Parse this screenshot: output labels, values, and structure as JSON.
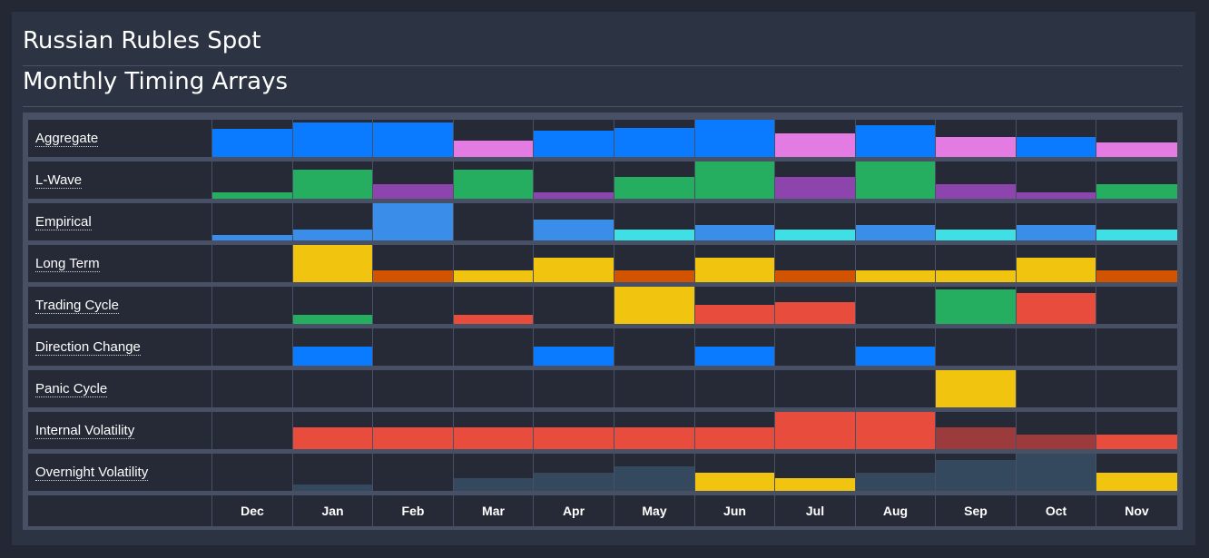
{
  "header": {
    "title": "Russian Rubles Spot",
    "subtitle": "Monthly Timing Arrays"
  },
  "colors": {
    "blue": "#0a7bff",
    "pink": "#e47be2",
    "green": "#26ae60",
    "purple": "#8e44ad",
    "mid_blue": "#3a8de8",
    "cyan": "#3ee0e6",
    "yellow": "#f1c40f",
    "orange": "#d35400",
    "red": "#e74c3c",
    "dark_red": "#9b3b3b",
    "slate": "#34495e",
    "cell_bg": "#252a36"
  },
  "chart_data": {
    "type": "heatmap",
    "title": "Monthly Timing Arrays",
    "categories": [
      "Dec",
      "Jan",
      "Feb",
      "Mar",
      "Apr",
      "May",
      "Jun",
      "Jul",
      "Aug",
      "Sep",
      "Oct",
      "Nov"
    ],
    "value_scale": "fraction of cell height (0-1)",
    "rows": [
      {
        "label": "Aggregate",
        "values": [
          0.75,
          0.93,
          0.93,
          0.45,
          0.71,
          0.77,
          1.0,
          0.64,
          0.85,
          0.54,
          0.54,
          0.4
        ],
        "colors": [
          "blue",
          "blue",
          "blue",
          "pink",
          "blue",
          "blue",
          "blue",
          "pink",
          "blue",
          "pink",
          "blue",
          "pink"
        ]
      },
      {
        "label": "L-Wave",
        "values": [
          0.18,
          0.78,
          0.39,
          0.78,
          0.18,
          0.58,
          1.0,
          0.58,
          1.0,
          0.39,
          0.18,
          0.39
        ],
        "colors": [
          "green",
          "green",
          "purple",
          "green",
          "purple",
          "green",
          "green",
          "purple",
          "green",
          "purple",
          "purple",
          "green"
        ]
      },
      {
        "label": "Empirical",
        "values": [
          0.15,
          0.29,
          1.0,
          0.0,
          0.56,
          0.29,
          0.41,
          0.29,
          0.41,
          0.29,
          0.41,
          0.29
        ],
        "colors": [
          "mid_blue",
          "mid_blue",
          "mid_blue",
          "mid_blue",
          "mid_blue",
          "cyan",
          "mid_blue",
          "cyan",
          "mid_blue",
          "cyan",
          "mid_blue",
          "cyan"
        ]
      },
      {
        "label": "Long Term",
        "values": [
          0.0,
          1.0,
          0.32,
          0.32,
          0.66,
          0.32,
          0.66,
          0.32,
          0.32,
          0.32,
          0.66,
          0.32
        ],
        "colors": [
          "yellow",
          "yellow",
          "orange",
          "yellow",
          "yellow",
          "orange",
          "yellow",
          "orange",
          "yellow",
          "yellow",
          "yellow",
          "orange"
        ]
      },
      {
        "label": "Trading Cycle",
        "values": [
          0.0,
          0.24,
          0.0,
          0.24,
          0.0,
          1.0,
          0.51,
          0.59,
          0.0,
          0.93,
          0.83,
          0.0
        ],
        "colors": [
          "green",
          "green",
          "green",
          "red",
          "green",
          "yellow",
          "red",
          "red",
          "green",
          "green",
          "red",
          "red"
        ]
      },
      {
        "label": "Direction Change",
        "values": [
          0.0,
          0.51,
          0.0,
          0.0,
          0.51,
          0.0,
          0.51,
          0.0,
          0.51,
          0.0,
          0.0,
          0.0
        ],
        "colors": [
          "blue",
          "blue",
          "blue",
          "blue",
          "blue",
          "blue",
          "blue",
          "blue",
          "blue",
          "blue",
          "blue",
          "blue"
        ]
      },
      {
        "label": "Panic Cycle",
        "values": [
          0.0,
          0.0,
          0.0,
          0.0,
          0.0,
          0.0,
          0.0,
          0.0,
          0.0,
          1.0,
          0.0,
          0.0
        ],
        "colors": [
          "yellow",
          "yellow",
          "yellow",
          "yellow",
          "yellow",
          "yellow",
          "yellow",
          "yellow",
          "yellow",
          "yellow",
          "yellow",
          "yellow"
        ]
      },
      {
        "label": "Internal Volatility",
        "values": [
          0.0,
          0.59,
          0.59,
          0.59,
          0.59,
          0.59,
          0.59,
          1.0,
          1.0,
          0.59,
          0.39,
          0.39
        ],
        "colors": [
          "red",
          "red",
          "red",
          "red",
          "red",
          "red",
          "red",
          "red",
          "red",
          "dark_red",
          "dark_red",
          "red"
        ]
      },
      {
        "label": "Overnight Volatility",
        "values": [
          0.0,
          0.17,
          0.0,
          0.34,
          0.49,
          0.66,
          0.49,
          0.34,
          0.49,
          0.83,
          1.0,
          0.49
        ],
        "colors": [
          "slate",
          "slate",
          "slate",
          "slate",
          "slate",
          "slate",
          "yellow",
          "yellow",
          "slate",
          "slate",
          "slate",
          "yellow"
        ]
      }
    ]
  }
}
